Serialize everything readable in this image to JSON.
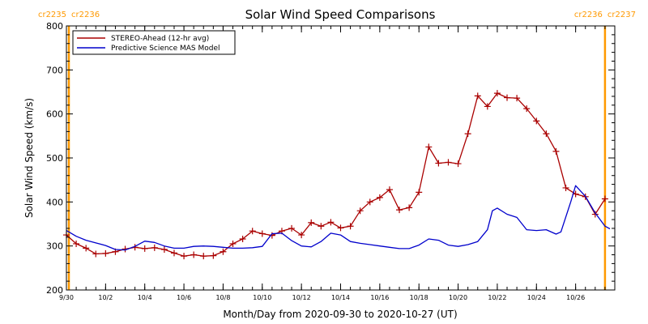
{
  "chart_data": {
    "type": "line",
    "title": "Solar Wind Speed Comparisons",
    "xlabel": "Month/Day from 2020-09-30 to 2020-10-27 (UT)",
    "ylabel": "Solar Wind Speed (km/s)",
    "xlim": [
      "2020-09-30",
      "2020-10-28"
    ],
    "ylim": [
      200,
      800
    ],
    "yticks": [
      200,
      300,
      400,
      500,
      600,
      700,
      800
    ],
    "xticks": [
      {
        "date": "2020-09-30",
        "label": "9/30"
      },
      {
        "date": "2020-10-02",
        "label": "10/2"
      },
      {
        "date": "2020-10-04",
        "label": "10/4"
      },
      {
        "date": "2020-10-06",
        "label": "10/6"
      },
      {
        "date": "2020-10-08",
        "label": "10/8"
      },
      {
        "date": "2020-10-10",
        "label": "10/10"
      },
      {
        "date": "2020-10-12",
        "label": "10/12"
      },
      {
        "date": "2020-10-14",
        "label": "10/14"
      },
      {
        "date": "2020-10-16",
        "label": "10/16"
      },
      {
        "date": "2020-10-18",
        "label": "10/18"
      },
      {
        "date": "2020-10-20",
        "label": "10/20"
      },
      {
        "date": "2020-10-22",
        "label": "10/22"
      },
      {
        "date": "2020-10-24",
        "label": "10/24"
      },
      {
        "date": "2020-10-26",
        "label": "10/26"
      }
    ],
    "legend_position": "top-left",
    "carrington_markers": [
      {
        "date": "2020-09-30 03:00",
        "label_left": "cr2235",
        "label_right": "cr2236",
        "color": "#ff9900"
      },
      {
        "date": "2020-10-27 12:00",
        "label_left": "cr2236",
        "label_right": "cr2237",
        "color": "#ff9900"
      }
    ],
    "series": [
      {
        "name": "STEREO-Ahead (12-hr avg)",
        "color": "#aa0000",
        "marker": "plus",
        "points": [
          [
            "2020-09-30 00:00",
            325
          ],
          [
            "2020-09-30 12:00",
            305
          ],
          [
            "2020-10-01 00:00",
            295
          ],
          [
            "2020-10-01 12:00",
            282
          ],
          [
            "2020-10-02 00:00",
            283
          ],
          [
            "2020-10-02 12:00",
            287
          ],
          [
            "2020-10-03 00:00",
            293
          ],
          [
            "2020-10-03 12:00",
            297
          ],
          [
            "2020-10-04 00:00",
            294
          ],
          [
            "2020-10-04 12:00",
            296
          ],
          [
            "2020-10-05 00:00",
            292
          ],
          [
            "2020-10-05 12:00",
            284
          ],
          [
            "2020-10-06 00:00",
            277
          ],
          [
            "2020-10-06 12:00",
            280
          ],
          [
            "2020-10-07 00:00",
            277
          ],
          [
            "2020-10-07 12:00",
            278
          ],
          [
            "2020-10-08 00:00",
            287
          ],
          [
            "2020-10-08 12:00",
            305
          ],
          [
            "2020-10-09 00:00",
            316
          ],
          [
            "2020-10-09 12:00",
            334
          ],
          [
            "2020-10-10 00:00",
            328
          ],
          [
            "2020-10-10 12:00",
            324
          ],
          [
            "2020-10-11 00:00",
            334
          ],
          [
            "2020-10-11 12:00",
            340
          ],
          [
            "2020-10-12 00:00",
            325
          ],
          [
            "2020-10-12 12:00",
            353
          ],
          [
            "2020-10-13 00:00",
            345
          ],
          [
            "2020-10-13 12:00",
            354
          ],
          [
            "2020-10-14 00:00",
            341
          ],
          [
            "2020-10-14 12:00",
            345
          ],
          [
            "2020-10-15 00:00",
            380
          ],
          [
            "2020-10-15 12:00",
            400
          ],
          [
            "2020-10-16 00:00",
            410
          ],
          [
            "2020-10-16 12:00",
            428
          ],
          [
            "2020-10-17 00:00",
            382
          ],
          [
            "2020-10-17 12:00",
            387
          ],
          [
            "2020-10-18 00:00",
            422
          ],
          [
            "2020-10-18 12:00",
            525
          ],
          [
            "2020-10-19 00:00",
            488
          ],
          [
            "2020-10-19 12:00",
            490
          ],
          [
            "2020-10-20 00:00",
            487
          ],
          [
            "2020-10-20 12:00",
            555
          ],
          [
            "2020-10-21 00:00",
            641
          ],
          [
            "2020-10-21 12:00",
            617
          ],
          [
            "2020-10-22 00:00",
            647
          ],
          [
            "2020-10-22 12:00",
            637
          ],
          [
            "2020-10-23 00:00",
            636
          ],
          [
            "2020-10-23 12:00",
            612
          ],
          [
            "2020-10-24 00:00",
            584
          ],
          [
            "2020-10-24 12:00",
            555
          ],
          [
            "2020-10-25 00:00",
            515
          ],
          [
            "2020-10-25 12:00",
            432
          ],
          [
            "2020-10-26 00:00",
            418
          ],
          [
            "2020-10-26 12:00",
            412
          ],
          [
            "2020-10-27 00:00",
            372
          ],
          [
            "2020-10-27 12:00",
            407
          ]
        ]
      },
      {
        "name": "Predictive Science MAS Model",
        "color": "#0000cc",
        "marker": "none",
        "points": [
          [
            "2020-09-30 00:00",
            335
          ],
          [
            "2020-09-30 12:00",
            322
          ],
          [
            "2020-10-01 00:00",
            313
          ],
          [
            "2020-10-01 12:00",
            307
          ],
          [
            "2020-10-02 00:00",
            301
          ],
          [
            "2020-10-02 12:00",
            292
          ],
          [
            "2020-10-03 00:00",
            291
          ],
          [
            "2020-10-03 12:00",
            299
          ],
          [
            "2020-10-04 00:00",
            311
          ],
          [
            "2020-10-04 12:00",
            308
          ],
          [
            "2020-10-05 00:00",
            300
          ],
          [
            "2020-10-05 12:00",
            295
          ],
          [
            "2020-10-06 00:00",
            295
          ],
          [
            "2020-10-06 12:00",
            299
          ],
          [
            "2020-10-07 00:00",
            300
          ],
          [
            "2020-10-07 12:00",
            299
          ],
          [
            "2020-10-08 00:00",
            297
          ],
          [
            "2020-10-08 12:00",
            295
          ],
          [
            "2020-10-09 00:00",
            295
          ],
          [
            "2020-10-09 12:00",
            296
          ],
          [
            "2020-10-10 00:00",
            299
          ],
          [
            "2020-10-10 12:00",
            328
          ],
          [
            "2020-10-11 00:00",
            329
          ],
          [
            "2020-10-11 12:00",
            312
          ],
          [
            "2020-10-12 00:00",
            300
          ],
          [
            "2020-10-12 12:00",
            298
          ],
          [
            "2020-10-13 00:00",
            310
          ],
          [
            "2020-10-13 12:00",
            329
          ],
          [
            "2020-10-14 00:00",
            325
          ],
          [
            "2020-10-14 12:00",
            310
          ],
          [
            "2020-10-15 00:00",
            306
          ],
          [
            "2020-10-15 12:00",
            303
          ],
          [
            "2020-10-16 00:00",
            300
          ],
          [
            "2020-10-16 12:00",
            297
          ],
          [
            "2020-10-17 00:00",
            294
          ],
          [
            "2020-10-17 12:00",
            294
          ],
          [
            "2020-10-18 00:00",
            302
          ],
          [
            "2020-10-18 12:00",
            316
          ],
          [
            "2020-10-19 00:00",
            313
          ],
          [
            "2020-10-19 12:00",
            302
          ],
          [
            "2020-10-20 00:00",
            299
          ],
          [
            "2020-10-20 12:00",
            303
          ],
          [
            "2020-10-21 00:00",
            310
          ],
          [
            "2020-10-21 12:00",
            337
          ],
          [
            "2020-10-21 18:00",
            380
          ],
          [
            "2020-10-22 00:00",
            386
          ],
          [
            "2020-10-22 12:00",
            372
          ],
          [
            "2020-10-23 00:00",
            365
          ],
          [
            "2020-10-23 12:00",
            337
          ],
          [
            "2020-10-24 00:00",
            335
          ],
          [
            "2020-10-24 12:00",
            337
          ],
          [
            "2020-10-25 00:00",
            327
          ],
          [
            "2020-10-25 06:00",
            332
          ],
          [
            "2020-10-25 18:00",
            400
          ],
          [
            "2020-10-26 00:00",
            437
          ],
          [
            "2020-10-26 12:00",
            413
          ],
          [
            "2020-10-27 00:00",
            375
          ],
          [
            "2020-10-27 12:00",
            345
          ],
          [
            "2020-10-27 18:00",
            339
          ]
        ]
      }
    ]
  }
}
